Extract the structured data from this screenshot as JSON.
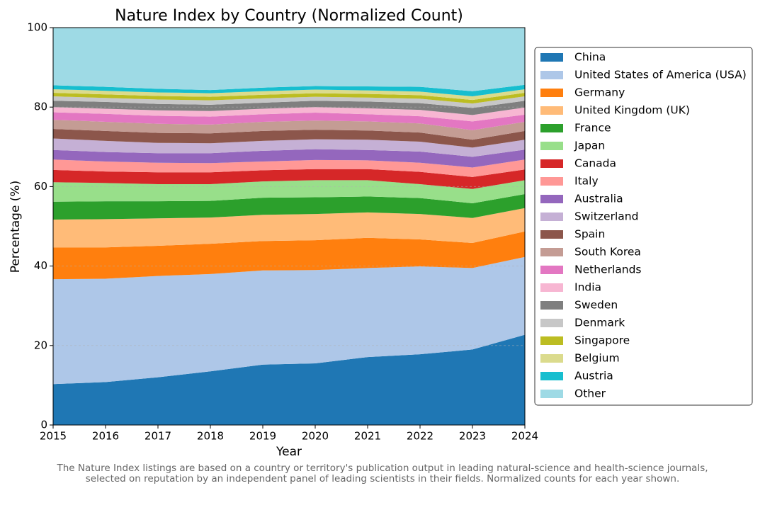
{
  "chart_data": {
    "type": "stacked_area",
    "title": "Nature Index by Country (Normalized Count)",
    "x_label": "Year",
    "y_label": "Percentage (%)",
    "note": [
      "The Nature Index listings are based on a country or territory's publication output in leading natural-science and health-science journals,",
      "selected on reputation by an independent panel of leading scientists in their fields. Normalized counts for each year shown."
    ],
    "x": [
      2015,
      2016,
      2017,
      2018,
      2019,
      2020,
      2021,
      2022,
      2023,
      2024
    ],
    "xlim": [
      2015,
      2024
    ],
    "xticks": [
      2015,
      2016,
      2017,
      2018,
      2019,
      2020,
      2021,
      2022,
      2023,
      2024
    ],
    "ylim": [
      0,
      100
    ],
    "yticks": [
      0,
      20,
      40,
      60,
      80,
      100
    ],
    "grid": true,
    "legend": "right",
    "series": [
      {
        "name": "China",
        "color": "#1f77b4",
        "values": [
          10.3,
          10.8,
          12.0,
          13.5,
          15.2,
          15.5,
          17.1,
          17.8,
          19.0,
          22.7
        ]
      },
      {
        "name": "United States of America (USA)",
        "color": "#aec7e8",
        "values": [
          26.4,
          26.0,
          25.5,
          24.5,
          23.7,
          23.5,
          22.4,
          22.1,
          20.5,
          19.6
        ]
      },
      {
        "name": "Germany",
        "color": "#ff7f0e",
        "values": [
          8.0,
          7.9,
          7.6,
          7.6,
          7.4,
          7.5,
          7.6,
          6.8,
          6.3,
          6.4
        ]
      },
      {
        "name": "United Kingdom (UK)",
        "color": "#ffbb78",
        "values": [
          7.0,
          7.1,
          6.9,
          6.6,
          6.6,
          6.6,
          6.4,
          6.4,
          6.3,
          5.9
        ]
      },
      {
        "name": "France",
        "color": "#2ca02c",
        "values": [
          4.5,
          4.5,
          4.3,
          4.2,
          4.3,
          4.2,
          4.0,
          4.0,
          3.7,
          3.5
        ]
      },
      {
        "name": "Japan",
        "color": "#98df8a",
        "values": [
          4.9,
          4.6,
          4.3,
          4.2,
          4.1,
          4.3,
          4.1,
          3.5,
          3.6,
          3.5
        ]
      },
      {
        "name": "Canada",
        "color": "#d62728",
        "values": [
          3.1,
          2.9,
          3.0,
          3.0,
          2.8,
          2.8,
          2.8,
          3.1,
          3.0,
          2.7
        ]
      },
      {
        "name": "Italy",
        "color": "#ff9896",
        "values": [
          2.6,
          2.5,
          2.4,
          2.3,
          2.2,
          2.3,
          2.2,
          2.3,
          2.4,
          2.5
        ]
      },
      {
        "name": "Australia",
        "color": "#9467bd",
        "values": [
          2.4,
          2.4,
          2.4,
          2.5,
          2.7,
          2.7,
          2.6,
          2.8,
          2.7,
          2.5
        ]
      },
      {
        "name": "Switzerland",
        "color": "#c5b0d5",
        "values": [
          2.9,
          2.8,
          2.6,
          2.5,
          2.5,
          2.5,
          2.6,
          2.5,
          2.3,
          2.5
        ]
      },
      {
        "name": "Spain",
        "color": "#8c564b",
        "values": [
          2.4,
          2.5,
          2.5,
          2.5,
          2.5,
          2.4,
          2.3,
          2.3,
          2.0,
          2.2
        ]
      },
      {
        "name": "South Korea",
        "color": "#c49c94",
        "values": [
          2.3,
          2.3,
          2.3,
          2.2,
          2.3,
          2.3,
          2.3,
          2.3,
          2.4,
          2.3
        ]
      },
      {
        "name": "Netherlands",
        "color": "#e377c2",
        "values": [
          1.9,
          2.0,
          2.0,
          2.0,
          1.9,
          2.0,
          1.8,
          1.8,
          2.2,
          1.8
        ]
      },
      {
        "name": "India",
        "color": "#f7b6d2",
        "values": [
          1.3,
          1.3,
          1.4,
          1.4,
          1.4,
          1.4,
          1.5,
          1.6,
          1.6,
          1.8
        ]
      },
      {
        "name": "Sweden",
        "color": "#7f7f7f",
        "values": [
          1.6,
          1.7,
          1.6,
          1.6,
          1.5,
          1.6,
          1.7,
          1.7,
          1.8,
          1.7
        ]
      },
      {
        "name": "Denmark",
        "color": "#c7c7c7",
        "values": [
          1.1,
          1.0,
          1.1,
          1.1,
          1.1,
          1.0,
          1.0,
          1.1,
          1.1,
          1.1
        ]
      },
      {
        "name": "Singapore",
        "color": "#bcbd22",
        "values": [
          0.9,
          0.9,
          0.9,
          0.9,
          0.9,
          0.9,
          0.9,
          0.9,
          0.9,
          0.9
        ]
      },
      {
        "name": "Belgium",
        "color": "#dbdb8d",
        "values": [
          0.9,
          0.9,
          0.9,
          0.9,
          0.9,
          0.9,
          0.9,
          0.9,
          0.9,
          0.9
        ]
      },
      {
        "name": "Austria",
        "color": "#17becf",
        "values": [
          1.0,
          1.0,
          0.9,
          0.8,
          0.9,
          0.9,
          1.0,
          1.2,
          1.3,
          1.1
        ]
      },
      {
        "name": "Other",
        "color": "#9edae5",
        "values": [
          14.5,
          14.9,
          15.4,
          15.7,
          15.1,
          14.7,
          14.8,
          14.9,
          16.0,
          14.4
        ]
      }
    ]
  }
}
